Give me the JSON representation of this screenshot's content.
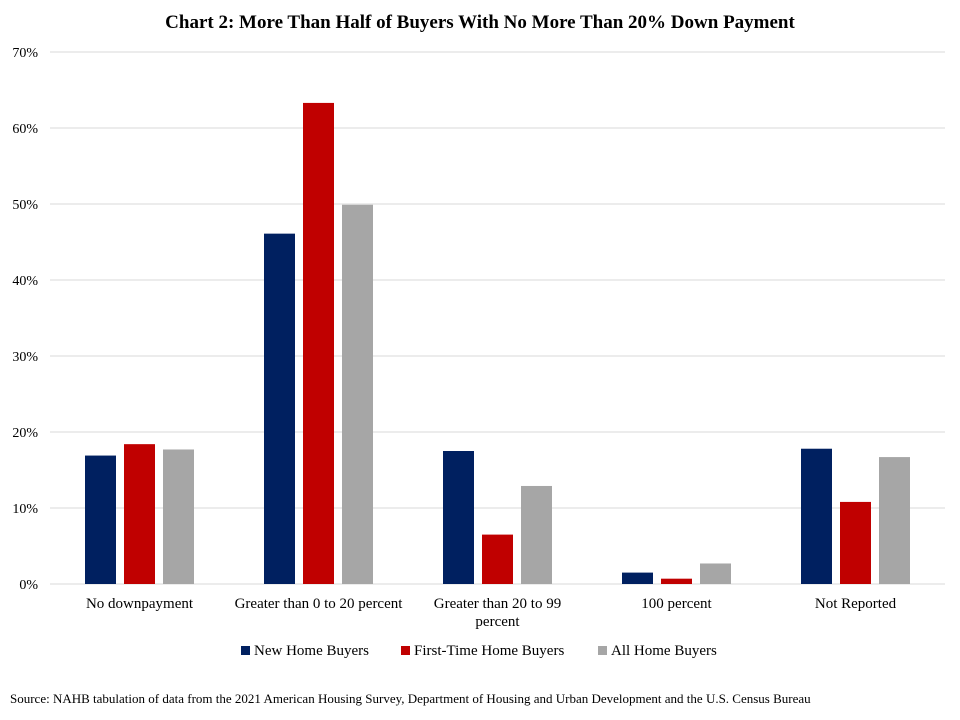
{
  "chart_data": {
    "type": "bar",
    "title": "Chart 2: More Than Half of Buyers With No More Than 20% Down Payment",
    "xlabel": "",
    "ylabel": "",
    "categories": [
      "No downpayment",
      "Greater than 0 to 20 percent",
      "Greater than 20 to 99 percent",
      "100 percent",
      "Not Reported"
    ],
    "series": [
      {
        "name": "New Home Buyers",
        "color": "#002060",
        "values": [
          16.9,
          46.1,
          17.5,
          1.5,
          17.8
        ]
      },
      {
        "name": "First-Time Home Buyers",
        "color": "#C00000",
        "values": [
          18.4,
          63.3,
          6.5,
          0.7,
          10.8
        ]
      },
      {
        "name": "All Home Buyers",
        "color": "#A6A6A6",
        "values": [
          17.7,
          49.9,
          12.9,
          2.7,
          16.7
        ]
      }
    ],
    "ylim": [
      0,
      70
    ],
    "yticks": [
      0,
      10,
      20,
      30,
      40,
      50,
      60,
      70
    ],
    "ytick_labels": [
      "0%",
      "10%",
      "20%",
      "30%",
      "40%",
      "50%",
      "60%",
      "70%"
    ],
    "grid": true,
    "gridline_color": "#D9D9D9",
    "legend_position": "bottom",
    "source": "Source: NAHB tabulation of data from the 2021 American Housing Survey, Department of Housing and Urban Development and the U.S. Census Bureau"
  }
}
